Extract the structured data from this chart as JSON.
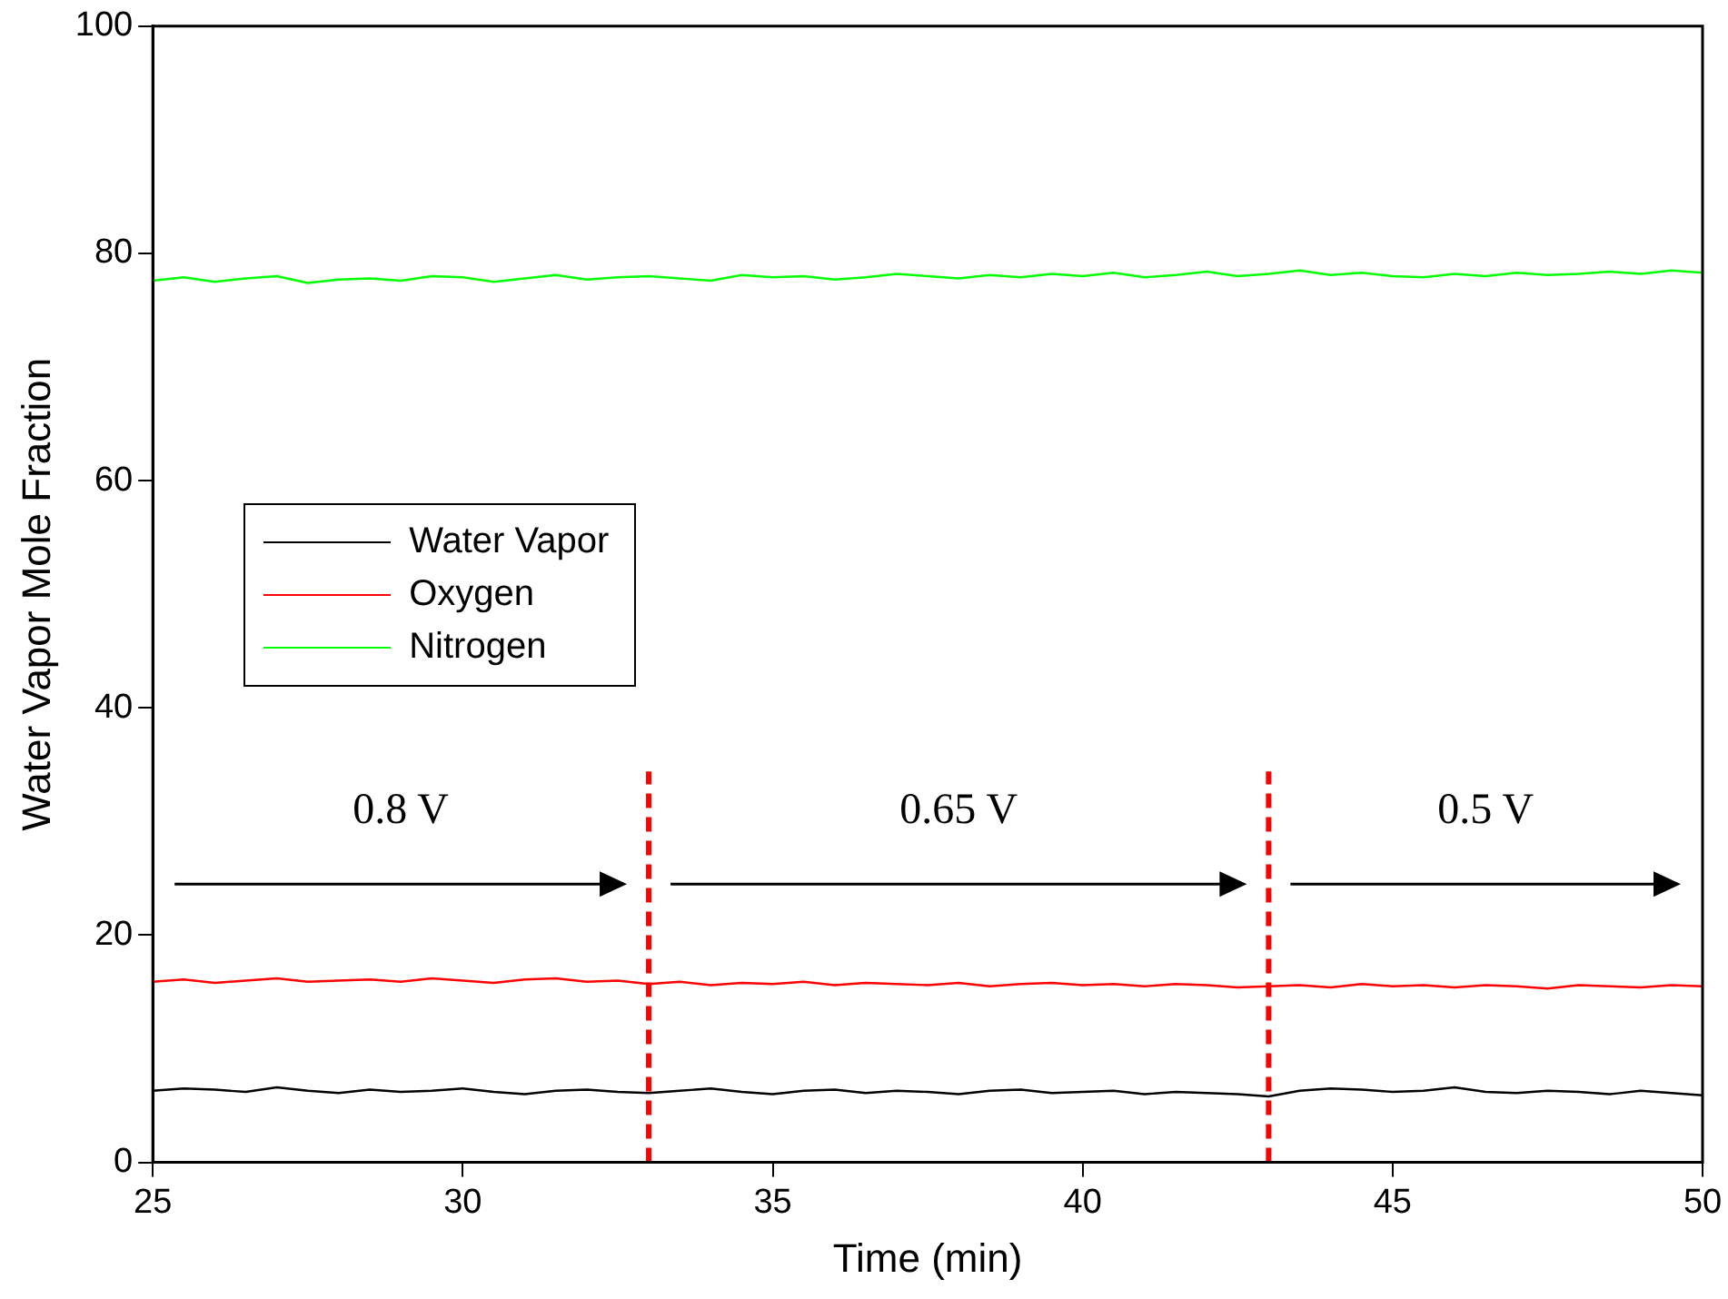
{
  "chart_data": {
    "type": "line",
    "xlabel": "Time (min)",
    "ylabel": "Water Vapor Mole Fraction",
    "x": [
      25,
      25.5,
      26,
      26.5,
      27,
      27.5,
      28,
      28.5,
      29,
      29.5,
      30,
      30.5,
      31,
      31.5,
      32,
      32.5,
      33,
      33.5,
      34,
      34.5,
      35,
      35.5,
      36,
      36.5,
      37,
      37.5,
      38,
      38.5,
      39,
      39.5,
      40,
      40.5,
      41,
      41.5,
      42,
      42.5,
      43,
      43.5,
      44,
      44.5,
      45,
      45.5,
      46,
      46.5,
      47,
      47.5,
      48,
      48.5,
      49,
      49.5,
      50
    ],
    "series": [
      {
        "name": "Water Vapor",
        "color": "#000000",
        "values": [
          6.3,
          6.5,
          6.4,
          6.2,
          6.6,
          6.3,
          6.1,
          6.4,
          6.2,
          6.3,
          6.5,
          6.2,
          6.0,
          6.3,
          6.4,
          6.2,
          6.1,
          6.3,
          6.5,
          6.2,
          6.0,
          6.3,
          6.4,
          6.1,
          6.3,
          6.2,
          6.0,
          6.3,
          6.4,
          6.1,
          6.2,
          6.3,
          6.0,
          6.2,
          6.1,
          6.0,
          5.8,
          6.3,
          6.5,
          6.4,
          6.2,
          6.3,
          6.6,
          6.2,
          6.1,
          6.3,
          6.2,
          6.0,
          6.3,
          6.1,
          5.9
        ]
      },
      {
        "name": "Oxygen",
        "color": "#ff0000",
        "values": [
          15.9,
          16.1,
          15.8,
          16.0,
          16.2,
          15.9,
          16.0,
          16.1,
          15.9,
          16.2,
          16.0,
          15.8,
          16.1,
          16.2,
          15.9,
          16.0,
          15.7,
          15.9,
          15.6,
          15.8,
          15.7,
          15.9,
          15.6,
          15.8,
          15.7,
          15.6,
          15.8,
          15.5,
          15.7,
          15.8,
          15.6,
          15.7,
          15.5,
          15.7,
          15.6,
          15.4,
          15.5,
          15.6,
          15.4,
          15.7,
          15.5,
          15.6,
          15.4,
          15.6,
          15.5,
          15.3,
          15.6,
          15.5,
          15.4,
          15.6,
          15.5
        ]
      },
      {
        "name": "Nitrogen",
        "color": "#00ff00",
        "values": [
          77.6,
          77.9,
          77.5,
          77.8,
          78.0,
          77.4,
          77.7,
          77.8,
          77.6,
          78.0,
          77.9,
          77.5,
          77.8,
          78.1,
          77.7,
          77.9,
          78.0,
          77.8,
          77.6,
          78.1,
          77.9,
          78.0,
          77.7,
          77.9,
          78.2,
          78.0,
          77.8,
          78.1,
          77.9,
          78.2,
          78.0,
          78.3,
          77.9,
          78.1,
          78.4,
          78.0,
          78.2,
          78.5,
          78.1,
          78.3,
          78.0,
          77.9,
          78.2,
          78.0,
          78.3,
          78.1,
          78.2,
          78.4,
          78.2,
          78.5,
          78.3
        ]
      }
    ],
    "xlim": [
      25,
      50
    ],
    "xticks": [
      25,
      30,
      35,
      40,
      45,
      50
    ],
    "ylim": [
      0,
      100
    ],
    "yticks": [
      0,
      20,
      40,
      60,
      80,
      100
    ],
    "ref_lines": [
      {
        "axis": "x",
        "value": 33,
        "color": "#ff0000",
        "line_style": "dashed"
      },
      {
        "axis": "x",
        "value": 43,
        "color": "#ff0000",
        "line_style": "dashed"
      }
    ],
    "annotations": [
      "0.8 V",
      "0.65 V",
      "0.5 V"
    ],
    "grid": false,
    "legend": "center left",
    "marker": "none",
    "line_style": "solid"
  }
}
